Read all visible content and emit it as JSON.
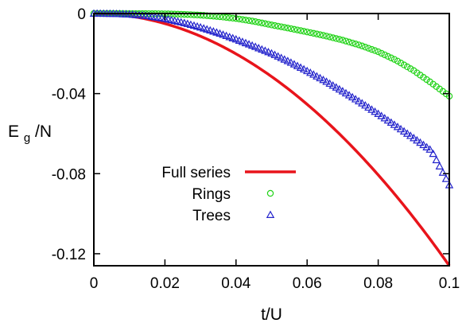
{
  "chart_data": {
    "type": "line",
    "xlabel": "t/U",
    "ylabel_main": "E",
    "ylabel_sub": "g",
    "ylabel_tail": "/N",
    "xlim": [
      0,
      0.1
    ],
    "ylim": [
      -0.126,
      0
    ],
    "xticks": [
      {
        "value": 0,
        "label": "0"
      },
      {
        "value": 0.02,
        "label": "0.02"
      },
      {
        "value": 0.04,
        "label": "0.04"
      },
      {
        "value": 0.06,
        "label": "0.06"
      },
      {
        "value": 0.08,
        "label": "0.08"
      },
      {
        "value": 0.1,
        "label": "0.1"
      }
    ],
    "yticks": [
      {
        "value": 0,
        "label": "0"
      },
      {
        "value": -0.04,
        "label": "-0.04"
      },
      {
        "value": -0.08,
        "label": "-0.08"
      },
      {
        "value": -0.12,
        "label": "-0.12"
      }
    ],
    "grid": false,
    "legend_position": "lower-left",
    "series": [
      {
        "name": "Full series",
        "style": "line",
        "color": "#e8141b",
        "x": [
          0,
          0.005,
          0.01,
          0.015,
          0.02,
          0.025,
          0.03,
          0.035,
          0.04,
          0.045,
          0.05,
          0.055,
          0.06,
          0.065,
          0.07,
          0.075,
          0.08,
          0.085,
          0.09,
          0.095,
          0.1
        ],
        "y": [
          0,
          -2e-05,
          -0.0002,
          -0.0006,
          -0.0014,
          -0.003,
          -0.0054,
          -0.0089,
          -0.0133,
          -0.019,
          -0.0257,
          -0.0334,
          -0.0421,
          -0.0518,
          -0.0625,
          -0.0741,
          -0.0866,
          -0.0998,
          -0.1138,
          -0.1285,
          -0.126
        ]
      },
      {
        "name": "Rings",
        "style": "markers",
        "marker": "circle",
        "color": "#22d318",
        "x": [
          0,
          0.005,
          0.01,
          0.015,
          0.02,
          0.025,
          0.03,
          0.035,
          0.04,
          0.045,
          0.05,
          0.055,
          0.06,
          0.065,
          0.07,
          0.075,
          0.08,
          0.085,
          0.09,
          0.095,
          0.1
        ],
        "y": [
          0,
          0,
          -1e-05,
          -5e-05,
          -0.00016,
          -0.0004,
          -0.0008,
          -0.0015,
          -0.0025,
          -0.0039,
          -0.0057,
          -0.0074,
          -0.0092,
          -0.0111,
          -0.0133,
          -0.0159,
          -0.0191,
          -0.0233,
          -0.0285,
          -0.0347,
          -0.0413
        ]
      },
      {
        "name": "Trees",
        "style": "markers",
        "marker": "triangle",
        "color": "#2424cc",
        "x": [
          0,
          0.005,
          0.01,
          0.015,
          0.02,
          0.025,
          0.03,
          0.035,
          0.04,
          0.045,
          0.05,
          0.055,
          0.06,
          0.065,
          0.07,
          0.075,
          0.08,
          0.085,
          0.09,
          0.095,
          0.1
        ],
        "y": [
          0,
          -0.0001,
          -0.0004,
          -0.0012,
          -0.0026,
          -0.0045,
          -0.0069,
          -0.0097,
          -0.0129,
          -0.0163,
          -0.0199,
          -0.0241,
          -0.0287,
          -0.0336,
          -0.0388,
          -0.0443,
          -0.0501,
          -0.0561,
          -0.0622,
          -0.0685,
          -0.0857
        ]
      }
    ]
  },
  "colors": {
    "axis": "#000000",
    "background": "#ffffff"
  }
}
